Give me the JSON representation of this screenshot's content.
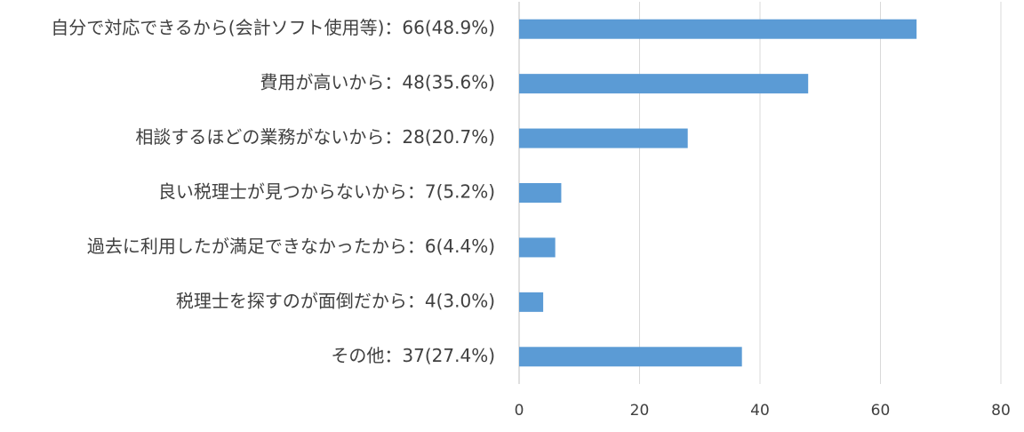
{
  "chart_data": {
    "type": "bar",
    "orientation": "horizontal",
    "categories": [
      "自分で対応できるから(会計ソフト使用等)：66(48.9%)",
      "費用が高いから：48(35.6%)",
      "相談するほどの業務がないから：28(20.7%)",
      "良い税理士が見つからないから：7(5.2%)",
      "過去に利用したが満足できなかったから：6(4.4%)",
      "税理士を探すのが面倒だから：4(3.0%)",
      "その他：37(27.4%)"
    ],
    "values": [
      66,
      48,
      28,
      7,
      6,
      4,
      37
    ],
    "color": "#5b9bd5",
    "xlim": [
      0,
      80
    ],
    "xticks": [
      0,
      20,
      40,
      60,
      80
    ],
    "grid": true
  }
}
